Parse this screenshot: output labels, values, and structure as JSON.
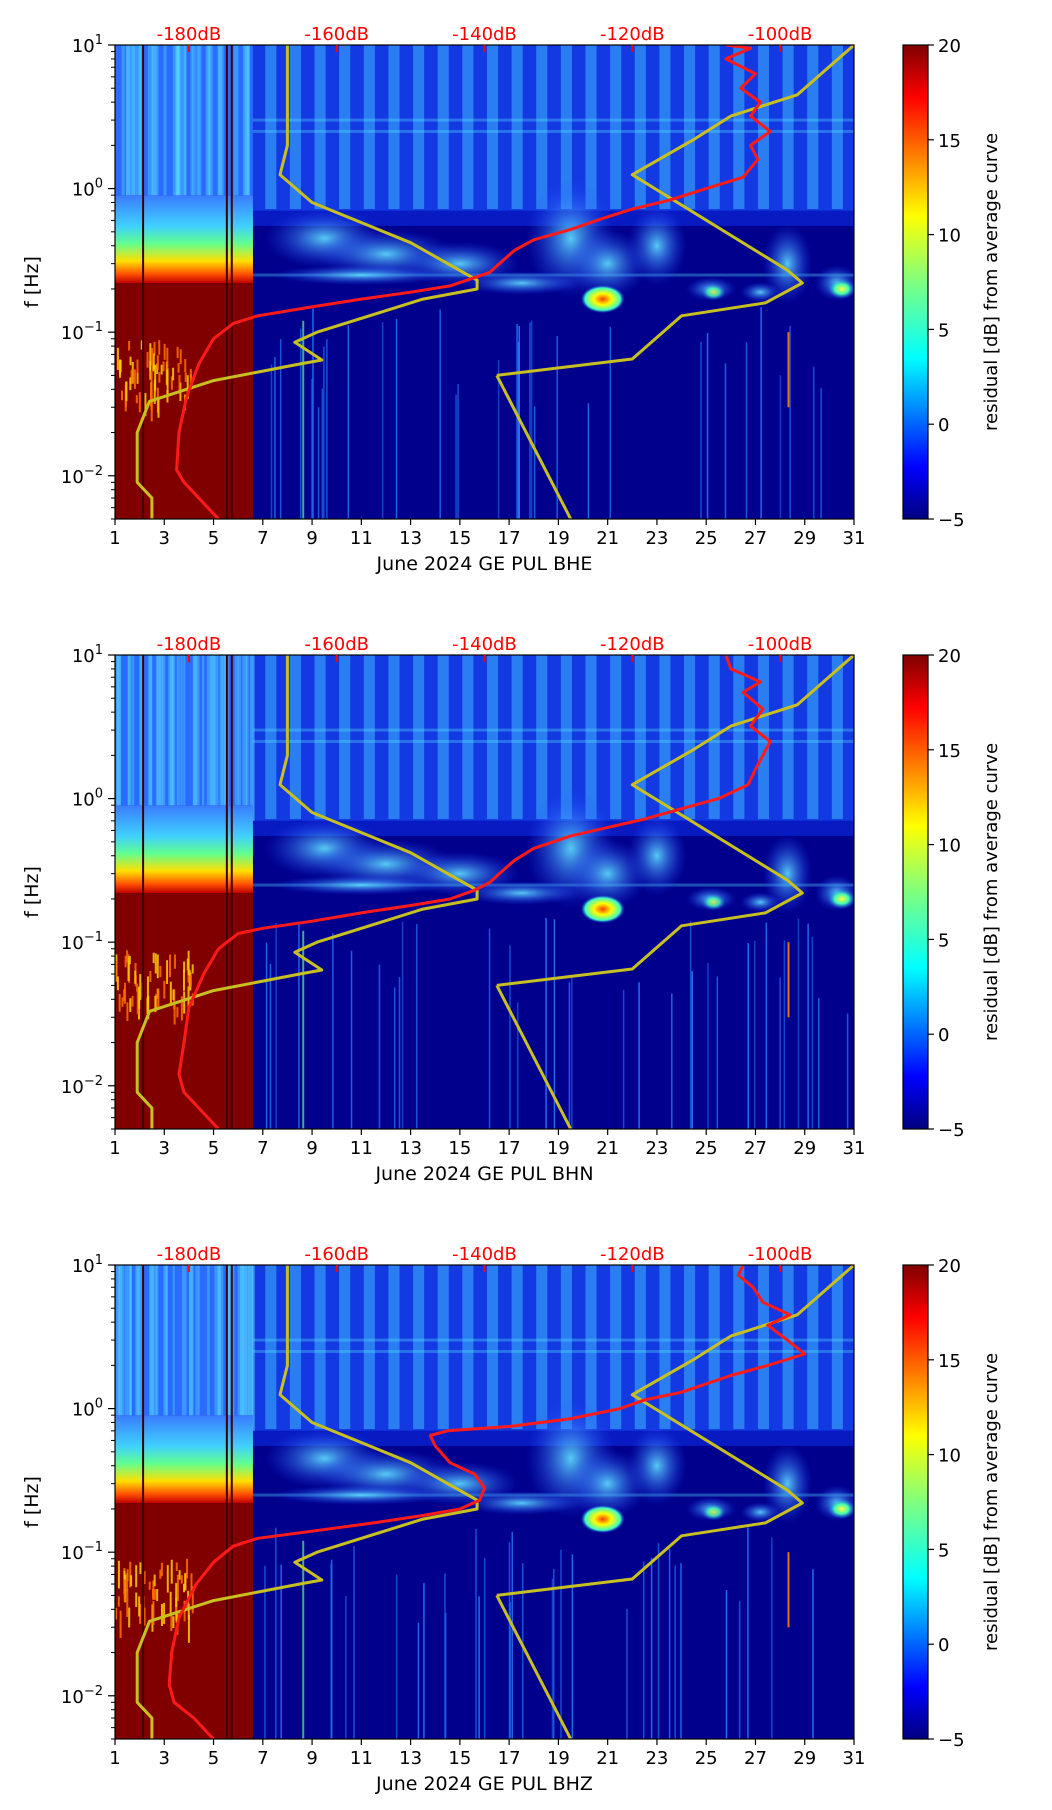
{
  "chart_data": [
    {
      "type": "heatmap",
      "xlabel": "June 2024 GE PUL  BHE",
      "ylabel": "f [Hz]",
      "colorbar_label": "residual [dB] from average curve",
      "xlim": [
        1,
        31
      ],
      "ylim": [
        0.005,
        10
      ],
      "yscale": "log",
      "x_ticks": [
        "1",
        "3",
        "5",
        "7",
        "9",
        "11",
        "13",
        "15",
        "17",
        "19",
        "21",
        "23",
        "25",
        "27",
        "29",
        "31"
      ],
      "y_ticks": [
        {
          "value": 0.01,
          "label": "10",
          "exp": "−2"
        },
        {
          "value": 0.1,
          "label": "10",
          "exp": "−1"
        },
        {
          "value": 1,
          "label": "10",
          "exp": "0"
        },
        {
          "value": 10,
          "label": "10",
          "exp": "1"
        }
      ],
      "colorbar_range": [
        -5,
        20
      ],
      "colorbar_ticks": [
        "−5",
        "0",
        "5",
        "10",
        "15",
        "20"
      ],
      "db_scale_labels": [
        {
          "x": 4,
          "label": "-180dB"
        },
        {
          "x": 10,
          "label": "-160dB"
        },
        {
          "x": 16,
          "label": "-140dB"
        },
        {
          "x": 22,
          "label": "-120dB"
        },
        {
          "x": 28,
          "label": "-100dB"
        }
      ],
      "curve_colors": {
        "red": "#ff1a1a",
        "yellow": "#c8c020"
      },
      "red_curve": [
        [
          5.2,
          0.005
        ],
        [
          4.4,
          0.007
        ],
        [
          3.8,
          0.009
        ],
        [
          3.5,
          0.011
        ],
        [
          3.6,
          0.02
        ],
        [
          3.9,
          0.035
        ],
        [
          4.4,
          0.06
        ],
        [
          5.0,
          0.09
        ],
        [
          5.8,
          0.115
        ],
        [
          6.8,
          0.13
        ],
        [
          9.0,
          0.15
        ],
        [
          11.0,
          0.17
        ],
        [
          13.0,
          0.19
        ],
        [
          14.6,
          0.21
        ],
        [
          15.6,
          0.24
        ],
        [
          16.2,
          0.26
        ],
        [
          16.6,
          0.3
        ],
        [
          17.2,
          0.37
        ],
        [
          18.0,
          0.44
        ],
        [
          19.5,
          0.52
        ],
        [
          20.8,
          0.62
        ],
        [
          22.0,
          0.72
        ],
        [
          23.5,
          0.83
        ],
        [
          25.0,
          1.0
        ],
        [
          26.5,
          1.2
        ],
        [
          27.1,
          1.6
        ],
        [
          26.8,
          2.0
        ],
        [
          27.6,
          2.5
        ],
        [
          26.8,
          3.2
        ],
        [
          27.2,
          4.0
        ],
        [
          26.4,
          5.0
        ],
        [
          27.0,
          6.3
        ],
        [
          25.8,
          8.0
        ],
        [
          26.8,
          9.5
        ],
        [
          25.8,
          10
        ]
      ],
      "yellow_curve": [
        [
          2.5,
          0.005
        ],
        [
          2.5,
          0.007
        ],
        [
          1.9,
          0.009
        ],
        [
          1.9,
          0.02
        ],
        [
          2.4,
          0.033
        ],
        [
          5.0,
          0.046
        ],
        [
          8.5,
          0.06
        ],
        [
          9.4,
          0.064
        ],
        [
          8.3,
          0.085
        ],
        [
          9.2,
          0.1
        ],
        [
          13.5,
          0.17
        ],
        [
          15.7,
          0.2
        ],
        [
          15.7,
          0.23
        ],
        [
          13.0,
          0.42
        ],
        [
          9.0,
          0.8
        ],
        [
          7.7,
          1.25
        ],
        [
          8.0,
          2.0
        ],
        [
          8.0,
          10
        ],
        [
          16.5,
          0.05
        ],
        [
          22.0,
          0.065
        ],
        [
          24.0,
          0.13
        ],
        [
          27.4,
          0.16
        ],
        [
          28.9,
          0.22
        ],
        [
          28.3,
          0.27
        ],
        [
          22.0,
          1.25
        ],
        [
          24.5,
          2.2
        ],
        [
          26.0,
          3.2
        ],
        [
          28.7,
          4.5
        ],
        [
          31.0,
          10
        ]
      ],
      "yellow_tail": [
        [
          16.5,
          0.05
        ],
        [
          19.5,
          0.005
        ]
      ]
    },
    {
      "type": "heatmap",
      "xlabel": "June 2024 GE PUL  BHN",
      "ylabel": "f [Hz]",
      "colorbar_label": "residual [dB] from average curve",
      "xlim": [
        1,
        31
      ],
      "ylim": [
        0.005,
        10
      ],
      "yscale": "log",
      "x_ticks": [
        "1",
        "3",
        "5",
        "7",
        "9",
        "11",
        "13",
        "15",
        "17",
        "19",
        "21",
        "23",
        "25",
        "27",
        "29",
        "31"
      ],
      "y_ticks": [
        {
          "value": 0.01,
          "label": "10",
          "exp": "−2"
        },
        {
          "value": 0.1,
          "label": "10",
          "exp": "−1"
        },
        {
          "value": 1,
          "label": "10",
          "exp": "0"
        },
        {
          "value": 10,
          "label": "10",
          "exp": "1"
        }
      ],
      "colorbar_range": [
        -5,
        20
      ],
      "colorbar_ticks": [
        "−5",
        "0",
        "5",
        "10",
        "15",
        "20"
      ],
      "db_scale_labels": [
        {
          "x": 4,
          "label": "-180dB"
        },
        {
          "x": 10,
          "label": "-160dB"
        },
        {
          "x": 16,
          "label": "-140dB"
        },
        {
          "x": 22,
          "label": "-120dB"
        },
        {
          "x": 28,
          "label": "-100dB"
        }
      ],
      "curve_colors": {
        "red": "#ff1a1a",
        "yellow": "#c8c020"
      },
      "red_curve": [
        [
          5.2,
          0.005
        ],
        [
          4.4,
          0.007
        ],
        [
          3.8,
          0.009
        ],
        [
          3.6,
          0.012
        ],
        [
          3.8,
          0.02
        ],
        [
          4.0,
          0.035
        ],
        [
          4.6,
          0.06
        ],
        [
          5.2,
          0.09
        ],
        [
          6.0,
          0.115
        ],
        [
          7.0,
          0.125
        ],
        [
          9.0,
          0.14
        ],
        [
          11.0,
          0.16
        ],
        [
          13.0,
          0.18
        ],
        [
          14.6,
          0.2
        ],
        [
          15.6,
          0.23
        ],
        [
          16.2,
          0.26
        ],
        [
          16.6,
          0.3
        ],
        [
          17.2,
          0.37
        ],
        [
          18.0,
          0.45
        ],
        [
          19.5,
          0.55
        ],
        [
          21.0,
          0.63
        ],
        [
          22.5,
          0.72
        ],
        [
          24.0,
          0.85
        ],
        [
          25.5,
          1.0
        ],
        [
          26.7,
          1.25
        ],
        [
          27.0,
          1.6
        ],
        [
          27.6,
          2.5
        ],
        [
          26.8,
          3.2
        ],
        [
          27.3,
          4.2
        ],
        [
          26.5,
          5.5
        ],
        [
          27.2,
          6.5
        ],
        [
          26.0,
          8.0
        ],
        [
          25.8,
          10
        ]
      ],
      "yellow_curve": [
        [
          2.5,
          0.005
        ],
        [
          2.5,
          0.007
        ],
        [
          1.9,
          0.009
        ],
        [
          1.9,
          0.02
        ],
        [
          2.4,
          0.033
        ],
        [
          5.0,
          0.046
        ],
        [
          8.5,
          0.06
        ],
        [
          9.4,
          0.064
        ],
        [
          8.3,
          0.085
        ],
        [
          9.2,
          0.1
        ],
        [
          13.5,
          0.17
        ],
        [
          15.7,
          0.2
        ],
        [
          15.7,
          0.23
        ],
        [
          13.0,
          0.42
        ],
        [
          9.0,
          0.8
        ],
        [
          7.7,
          1.25
        ],
        [
          8.0,
          2.0
        ],
        [
          8.0,
          10
        ],
        [
          16.5,
          0.05
        ],
        [
          22.0,
          0.065
        ],
        [
          24.0,
          0.13
        ],
        [
          27.4,
          0.16
        ],
        [
          28.9,
          0.22
        ],
        [
          28.3,
          0.27
        ],
        [
          22.0,
          1.25
        ],
        [
          24.5,
          2.2
        ],
        [
          26.0,
          3.2
        ],
        [
          28.7,
          4.5
        ],
        [
          31.0,
          10
        ]
      ],
      "yellow_tail": [
        [
          16.5,
          0.05
        ],
        [
          19.5,
          0.005
        ]
      ]
    },
    {
      "type": "heatmap",
      "xlabel": "June 2024 GE PUL  BHZ",
      "ylabel": "f [Hz]",
      "colorbar_label": "residual [dB] from average curve",
      "xlim": [
        1,
        31
      ],
      "ylim": [
        0.005,
        10
      ],
      "yscale": "log",
      "x_ticks": [
        "1",
        "3",
        "5",
        "7",
        "9",
        "11",
        "13",
        "15",
        "17",
        "19",
        "21",
        "23",
        "25",
        "27",
        "29",
        "31"
      ],
      "y_ticks": [
        {
          "value": 0.01,
          "label": "10",
          "exp": "−2"
        },
        {
          "value": 0.1,
          "label": "10",
          "exp": "−1"
        },
        {
          "value": 1,
          "label": "10",
          "exp": "0"
        },
        {
          "value": 10,
          "label": "10",
          "exp": "1"
        }
      ],
      "colorbar_range": [
        -5,
        20
      ],
      "colorbar_ticks": [
        "−5",
        "0",
        "5",
        "10",
        "15",
        "20"
      ],
      "db_scale_labels": [
        {
          "x": 4,
          "label": "-180dB"
        },
        {
          "x": 10,
          "label": "-160dB"
        },
        {
          "x": 16,
          "label": "-140dB"
        },
        {
          "x": 22,
          "label": "-120dB"
        },
        {
          "x": 28,
          "label": "-100dB"
        }
      ],
      "curve_colors": {
        "red": "#ff1a1a",
        "yellow": "#c8c020"
      },
      "red_curve": [
        [
          5.0,
          0.005
        ],
        [
          4.2,
          0.007
        ],
        [
          3.4,
          0.009
        ],
        [
          3.2,
          0.012
        ],
        [
          3.3,
          0.02
        ],
        [
          3.6,
          0.035
        ],
        [
          4.3,
          0.06
        ],
        [
          5.0,
          0.085
        ],
        [
          5.8,
          0.11
        ],
        [
          6.8,
          0.125
        ],
        [
          9.0,
          0.14
        ],
        [
          11.5,
          0.16
        ],
        [
          13.5,
          0.18
        ],
        [
          15.0,
          0.2
        ],
        [
          15.8,
          0.23
        ],
        [
          16.0,
          0.28
        ],
        [
          15.6,
          0.35
        ],
        [
          14.6,
          0.42
        ],
        [
          14.0,
          0.55
        ],
        [
          13.8,
          0.65
        ],
        [
          14.5,
          0.7
        ],
        [
          17.0,
          0.75
        ],
        [
          19.5,
          0.85
        ],
        [
          21.5,
          1.0
        ],
        [
          22.5,
          1.15
        ],
        [
          24.0,
          1.3
        ],
        [
          26.0,
          1.7
        ],
        [
          27.5,
          2.0
        ],
        [
          29.0,
          2.4
        ],
        [
          28.4,
          2.9
        ],
        [
          27.5,
          3.8
        ],
        [
          28.4,
          4.5
        ],
        [
          27.3,
          5.5
        ],
        [
          26.9,
          7.0
        ],
        [
          26.3,
          8.5
        ],
        [
          26.5,
          10
        ]
      ],
      "yellow_curve": [
        [
          2.5,
          0.005
        ],
        [
          2.5,
          0.007
        ],
        [
          1.9,
          0.009
        ],
        [
          1.9,
          0.02
        ],
        [
          2.4,
          0.033
        ],
        [
          5.0,
          0.046
        ],
        [
          8.5,
          0.06
        ],
        [
          9.4,
          0.064
        ],
        [
          8.3,
          0.085
        ],
        [
          9.2,
          0.1
        ],
        [
          13.5,
          0.17
        ],
        [
          15.7,
          0.2
        ],
        [
          15.7,
          0.23
        ],
        [
          13.0,
          0.42
        ],
        [
          9.0,
          0.8
        ],
        [
          7.7,
          1.25
        ],
        [
          8.0,
          2.0
        ],
        [
          8.0,
          10
        ],
        [
          16.5,
          0.05
        ],
        [
          22.0,
          0.065
        ],
        [
          24.0,
          0.13
        ],
        [
          27.4,
          0.16
        ],
        [
          28.9,
          0.22
        ],
        [
          28.3,
          0.27
        ],
        [
          22.0,
          1.25
        ],
        [
          24.5,
          2.2
        ],
        [
          26.0,
          3.2
        ],
        [
          28.7,
          4.5
        ],
        [
          31.0,
          10
        ]
      ],
      "yellow_tail": [
        [
          16.5,
          0.05
        ],
        [
          19.5,
          0.005
        ]
      ]
    }
  ]
}
